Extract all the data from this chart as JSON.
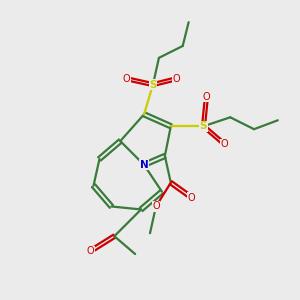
{
  "bg_color": "#ebebeb",
  "bond_color": "#3a7a3a",
  "N_color": "#0000cc",
  "O_color": "#cc0000",
  "S_color": "#cccc00",
  "line_width": 1.6,
  "fig_w": 3.0,
  "fig_h": 3.0,
  "dpi": 100,
  "xlim": [
    0,
    10
  ],
  "ylim": [
    0,
    10
  ]
}
